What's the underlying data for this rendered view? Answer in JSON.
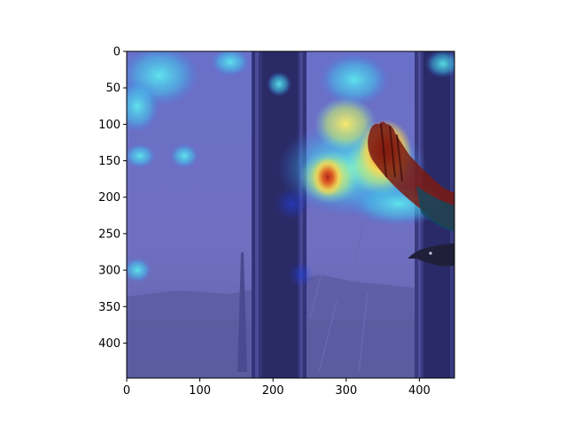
{
  "figure": {
    "image": {
      "description_icon": "heatmap-overlay-image",
      "colors": {
        "background_sky": "#6f6fbf",
        "cactus_dark": "#2a2a66",
        "heat_cyan": "#52e8f0",
        "heat_yellow": "#fff36e",
        "heat_red": "#c4282a",
        "axis": "#000000"
      }
    },
    "axes": {
      "x_min": 0,
      "x_max": 448,
      "y_min": 0,
      "y_max": 448,
      "x_ticks": [
        {
          "value": 0,
          "label": "0"
        },
        {
          "value": 100,
          "label": "100"
        },
        {
          "value": 200,
          "label": "200"
        },
        {
          "value": 300,
          "label": "300"
        },
        {
          "value": 400,
          "label": "400"
        }
      ],
      "y_ticks": [
        {
          "value": 0,
          "label": "0"
        },
        {
          "value": 50,
          "label": "50"
        },
        {
          "value": 100,
          "label": "100"
        },
        {
          "value": 150,
          "label": "150"
        },
        {
          "value": 200,
          "label": "200"
        },
        {
          "value": 250,
          "label": "250"
        },
        {
          "value": 300,
          "label": "300"
        },
        {
          "value": 350,
          "label": "350"
        },
        {
          "value": 400,
          "label": "400"
        }
      ]
    }
  }
}
